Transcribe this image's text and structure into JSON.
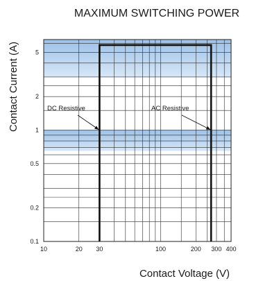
{
  "chart_data": {
    "type": "line",
    "title": "MAXIMUM SWITCHING POWER",
    "xlabel": "Contact Voltage (V)",
    "ylabel": "Contact Current (A)",
    "x_scale": "log",
    "y_scale": "log",
    "xlim": [
      10,
      400
    ],
    "ylim": [
      0.1,
      6.5
    ],
    "x_ticks": [
      {
        "value": 10,
        "label": "10"
      },
      {
        "value": 20,
        "label": "20"
      },
      {
        "value": 30,
        "label": "30"
      },
      {
        "value": 100,
        "label": "100"
      },
      {
        "value": 200,
        "label": "200"
      },
      {
        "value": 300,
        "label": "300"
      },
      {
        "value": 400,
        "label": "400"
      }
    ],
    "y_ticks": [
      {
        "value": 0.1,
        "label": "0.1"
      },
      {
        "value": 0.2,
        "label": "0.2"
      },
      {
        "value": 0.5,
        "label": "0.5"
      },
      {
        "value": 1,
        "label": "1"
      },
      {
        "value": 2,
        "label": "2"
      },
      {
        "value": 5,
        "label": "5"
      }
    ],
    "grid": true,
    "series": [
      {
        "name": "DC Resistive",
        "x": [
          30,
          30,
          270,
          270
        ],
        "y": [
          0.1,
          5.8,
          5.8,
          0.1
        ]
      },
      {
        "name": "AC Resistive",
        "x": [
          30,
          30,
          270,
          270
        ],
        "y": [
          0.1,
          5.8,
          5.8,
          0.1
        ]
      }
    ],
    "annotations": [
      {
        "text": "DC Resistive",
        "points_to": {
          "x": 30,
          "y": 0.98
        }
      },
      {
        "text": "AC Resistive",
        "points_to": {
          "x": 270,
          "y": 0.98
        }
      }
    ],
    "shaded_bands": [
      {
        "y_from": 0.65,
        "y_to": 1.0,
        "color": "#b8d3ee"
      },
      {
        "y_from": 3.0,
        "y_to": 6.5,
        "color": "#b8d3ee"
      }
    ],
    "colors": {
      "line": "#111111",
      "grid": "#2a2a2a",
      "band": "#b8d3ee",
      "background": "#ffffff"
    }
  }
}
